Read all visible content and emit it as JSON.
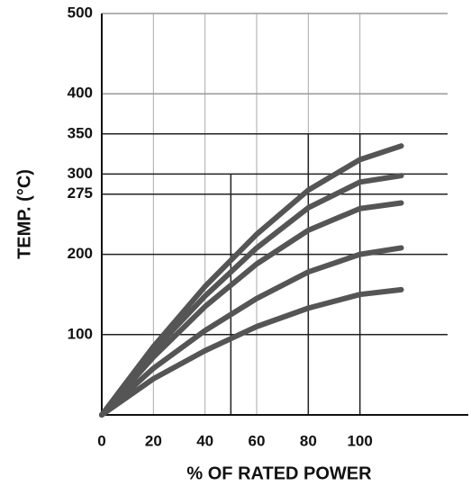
{
  "chart_data": {
    "type": "line",
    "xlabel": "% OF RATED POWER",
    "ylabel": "TEMP. (°C)",
    "x": [
      0,
      20,
      40,
      60,
      80,
      100,
      116
    ],
    "series": [
      {
        "color": "#555555",
        "values": [
          0,
          85,
          160,
          225,
          280,
          318,
          335
        ]
      },
      {
        "color": "#555555",
        "values": [
          0,
          80,
          148,
          208,
          258,
          290,
          298
        ]
      },
      {
        "color": "#555555",
        "values": [
          0,
          72,
          135,
          188,
          230,
          257,
          264
        ]
      },
      {
        "color": "#555555",
        "values": [
          0,
          58,
          105,
          145,
          178,
          200,
          208
        ]
      },
      {
        "color": "#555555",
        "values": [
          0,
          45,
          80,
          110,
          133,
          150,
          156
        ]
      }
    ],
    "xlim": [
      0,
      135
    ],
    "ylim": [
      0,
      500
    ],
    "xticks": [
      0,
      20,
      40,
      60,
      80,
      100
    ],
    "yticks": [
      100,
      200,
      275,
      300,
      350,
      400,
      500
    ],
    "reference_lines": [
      {
        "x": 50,
        "y": 300
      },
      {
        "x": 80,
        "y": 350
      },
      {
        "x": 100,
        "y": 350
      }
    ],
    "grid": true
  }
}
